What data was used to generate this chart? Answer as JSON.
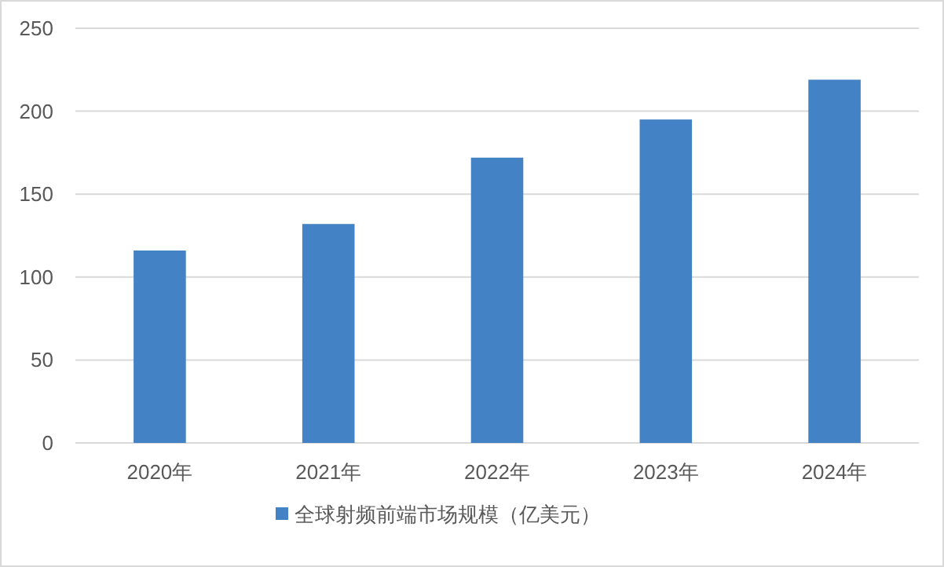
{
  "chart_data": {
    "type": "bar",
    "categories": [
      "2020年",
      "2021年",
      "2022年",
      "2023年",
      "2024年"
    ],
    "series": [
      {
        "name": "全球射频前端市场规模（亿美元）",
        "color": "#4382c4",
        "values": [
          116,
          132,
          172,
          195,
          219
        ]
      }
    ],
    "ylim": [
      0,
      250
    ],
    "yticks": [
      0,
      50,
      100,
      150,
      200,
      250
    ],
    "grid": "y",
    "legend": "bottom"
  }
}
